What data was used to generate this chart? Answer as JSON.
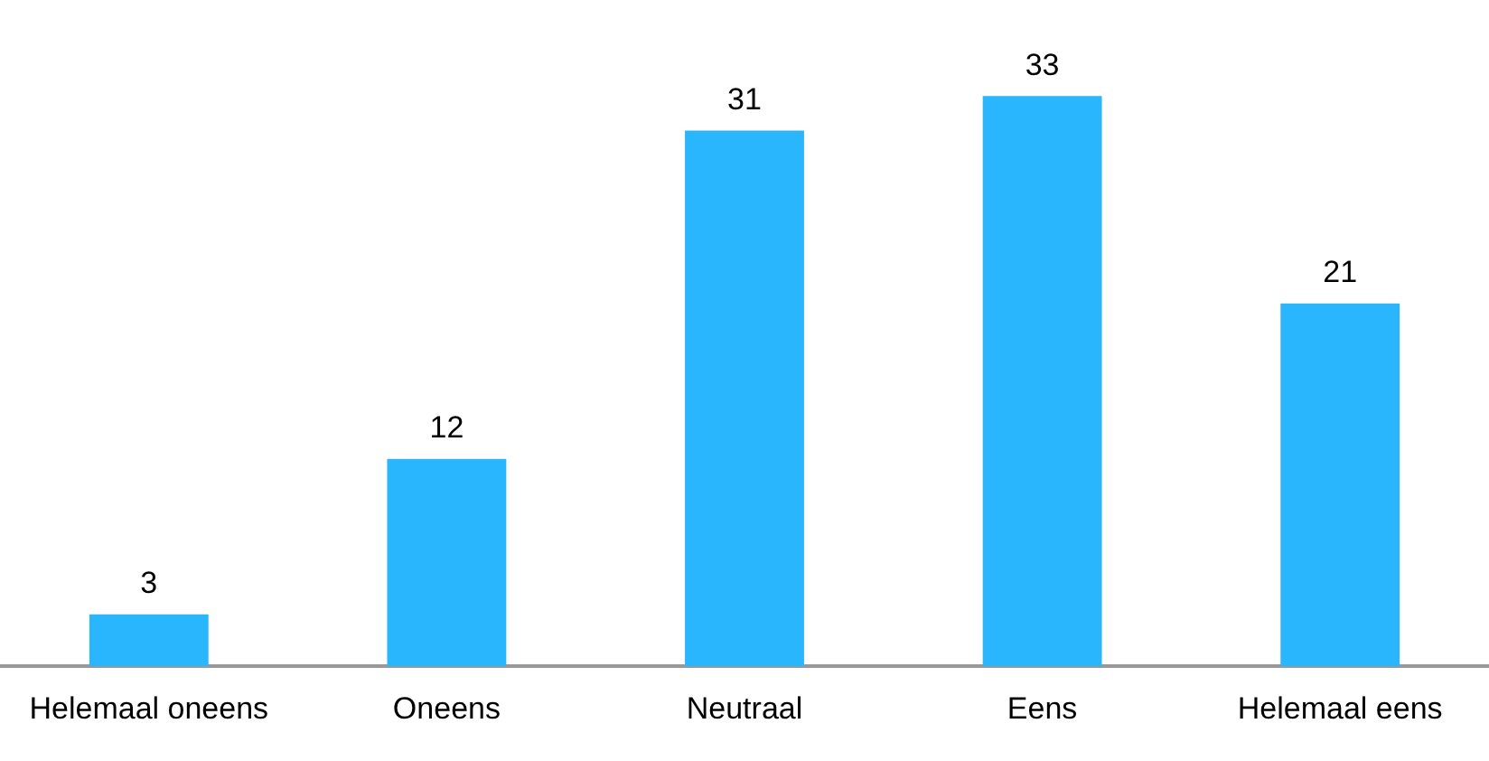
{
  "chart_data": {
    "type": "bar",
    "categories": [
      "Helemaal oneens",
      "Oneens",
      "Neutraal",
      "Eens",
      "Helemaal eens"
    ],
    "values": [
      3,
      12,
      31,
      33,
      21
    ],
    "color": "#29b6fc",
    "data_labels": true,
    "grid": false,
    "legend": false,
    "tick_labels": "x"
  }
}
